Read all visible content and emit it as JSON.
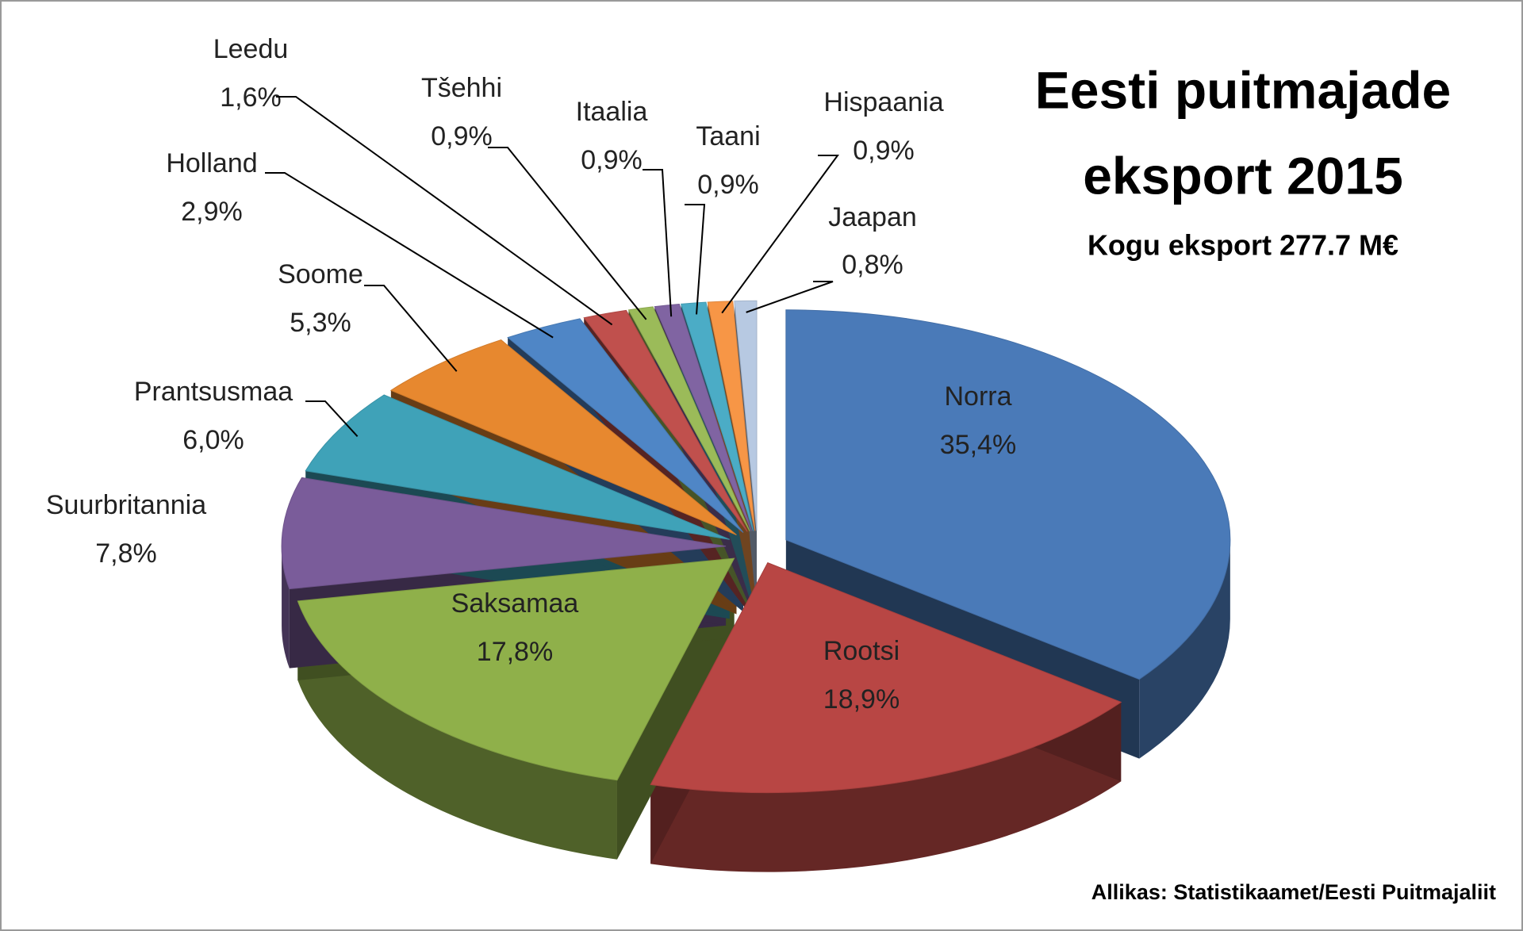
{
  "chart_data": {
    "type": "pie3d",
    "title": [
      "Eesti puitmajade",
      "eksport 2015"
    ],
    "subtitle": "Kogu eksport 277.7 M€",
    "source": "Allikas: Statistikaamet/Eesti Puitmajaliit",
    "categories": [
      "Norra",
      "Rootsi",
      "Saksamaa",
      "Suurbritannia",
      "Prantsusmaa",
      "Soome",
      "Holland",
      "Leedu",
      "Tšehhi",
      "Itaalia",
      "Taani",
      "Hispaania",
      "Jaapan"
    ],
    "values": [
      35.4,
      18.9,
      17.8,
      7.8,
      6.0,
      5.3,
      2.9,
      1.6,
      0.9,
      0.9,
      0.9,
      0.9,
      0.8
    ],
    "value_labels": [
      "35,4%",
      "18,9%",
      "17,8%",
      "7,8%",
      "6,0%",
      "5,3%",
      "2,9%",
      "1,6%",
      "0,9%",
      "0,9%",
      "0,9%",
      "0,9%",
      "0,8%"
    ],
    "colors": [
      "#4a7ab8",
      "#b84644",
      "#8fb04a",
      "#7a5c9a",
      "#3fa2b8",
      "#e7882f",
      "#4f86c6",
      "#c0504d",
      "#9bbb59",
      "#8064a2",
      "#4bacc6",
      "#f79646",
      "#b7c9e2"
    ]
  }
}
